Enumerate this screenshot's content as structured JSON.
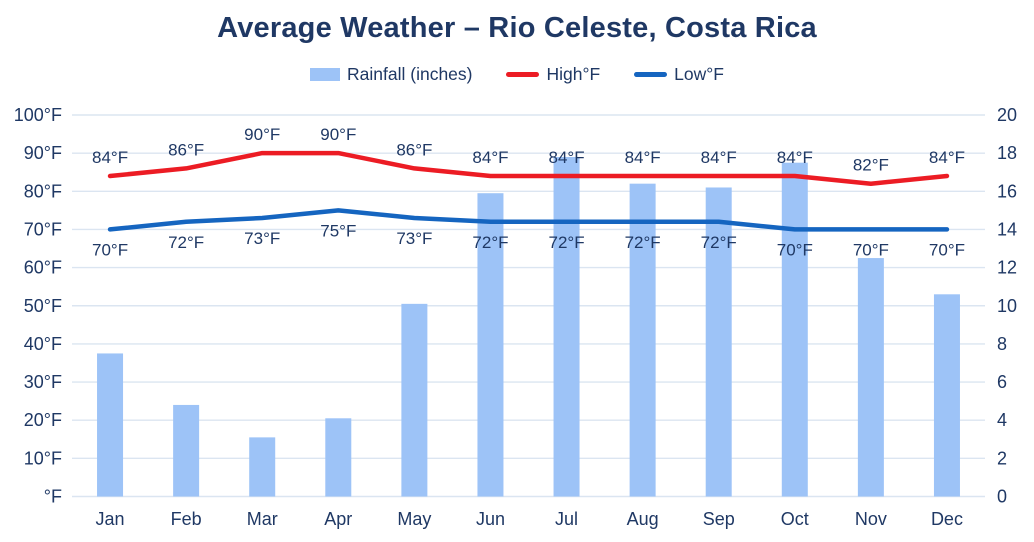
{
  "title": "Average Weather – Rio Celeste, Costa Rica",
  "legend": [
    {
      "label": "Rainfall (inches)",
      "swatch": "bar-swatch",
      "color": "#9DC3F7"
    },
    {
      "label": "High°F",
      "swatch": "line-swatch",
      "color": "#EC1C24"
    },
    {
      "label": "Low°F",
      "swatch": "line-swatch",
      "color": "#1565C0"
    }
  ],
  "chart_data": {
    "type": "bar",
    "subtype": "combo-bar-line",
    "title": "Average Weather – Rio Celeste, Costa Rica",
    "categories": [
      "Jan",
      "Feb",
      "Mar",
      "Apr",
      "May",
      "Jun",
      "Jul",
      "Aug",
      "Sep",
      "Oct",
      "Nov",
      "Dec"
    ],
    "series": [
      {
        "name": "Rainfall (inches)",
        "type": "bar",
        "axis": "right",
        "color": "#9DC3F7",
        "values": [
          7.5,
          4.8,
          3.1,
          4.1,
          10.1,
          15.9,
          17.8,
          16.4,
          16.2,
          17.5,
          12.5,
          10.6
        ]
      },
      {
        "name": "High°F",
        "type": "line",
        "axis": "left",
        "color": "#EC1C24",
        "values": [
          84,
          86,
          90,
          90,
          86,
          84,
          84,
          84,
          84,
          84,
          82,
          84
        ],
        "data_labels": [
          "84°F",
          "86°F",
          "90°F",
          "90°F",
          "86°F",
          "84°F",
          "84°F",
          "84°F",
          "84°F",
          "84°F",
          "82°F",
          "84°F"
        ],
        "label_position": "above"
      },
      {
        "name": "Low°F",
        "type": "line",
        "axis": "left",
        "color": "#1565C0",
        "values": [
          70,
          72,
          73,
          75,
          73,
          72,
          72,
          72,
          72,
          70,
          70,
          70
        ],
        "data_labels": [
          "70°F",
          "72°F",
          "73°F",
          "75°F",
          "73°F",
          "72°F",
          "72°F",
          "72°F",
          "72°F",
          "70°F",
          "70°F",
          "70°F"
        ],
        "label_position": "below"
      }
    ],
    "left_axis": {
      "ticks": [
        "100°F",
        "90°F",
        "80°F",
        "70°F",
        "60°F",
        "50°F",
        "40°F",
        "30°F",
        "20°F",
        "10°F",
        "°F"
      ],
      "min": 0,
      "max": 100
    },
    "right_axis": {
      "ticks": [
        "20",
        "18",
        "16",
        "14",
        "12",
        "10",
        "8",
        "6",
        "4",
        "2",
        "0"
      ],
      "min": 0,
      "max": 20
    },
    "grid": true,
    "gridline_color": "#DBE5F1",
    "legend_position": "top"
  }
}
